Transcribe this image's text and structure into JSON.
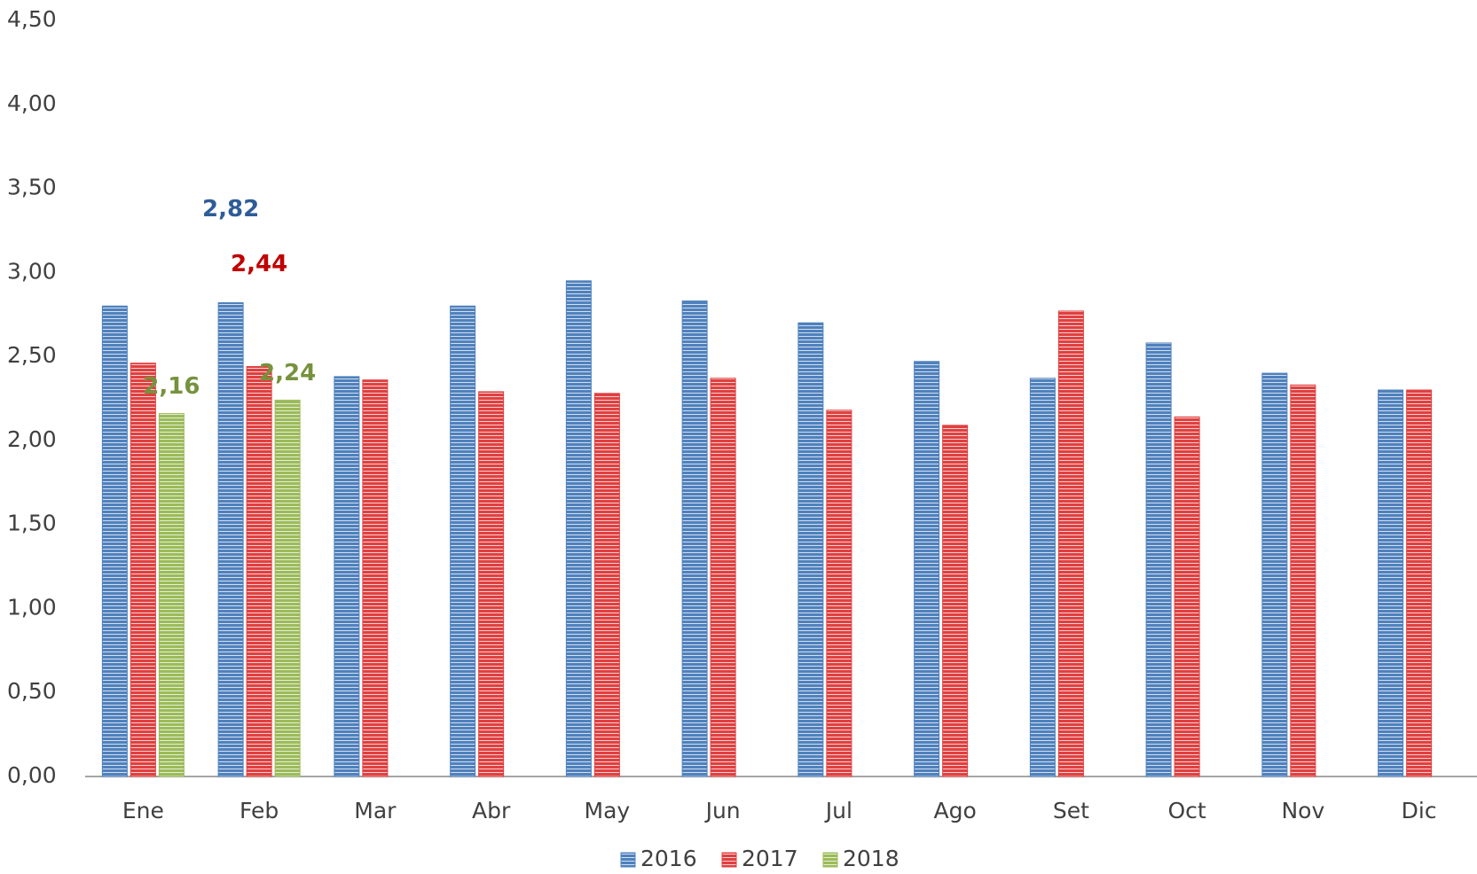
{
  "chart_data": {
    "type": "bar",
    "categories": [
      "Ene",
      "Feb",
      "Mar",
      "Abr",
      "May",
      "Jun",
      "Jul",
      "Ago",
      "Set",
      "Oct",
      "Nov",
      "Dic"
    ],
    "series": [
      {
        "name": "2016",
        "color": "#4f81bd",
        "values": [
          2.8,
          2.82,
          2.38,
          2.8,
          2.95,
          2.83,
          2.7,
          2.47,
          2.37,
          2.58,
          2.4,
          2.3
        ],
        "value_labels": [
          null,
          "2,82",
          null,
          null,
          null,
          null,
          null,
          null,
          null,
          null,
          null,
          null
        ],
        "label_color": "#2e5c97"
      },
      {
        "name": "2017",
        "color": "#e04040",
        "values": [
          2.46,
          2.44,
          2.36,
          2.29,
          2.28,
          2.37,
          2.18,
          2.09,
          2.77,
          2.14,
          2.33,
          2.3
        ],
        "value_labels": [
          null,
          "2,44",
          null,
          null,
          null,
          null,
          null,
          null,
          null,
          null,
          null,
          null
        ],
        "label_color": "#c00000"
      },
      {
        "name": "2018",
        "color": "#9bbb59",
        "values": [
          2.16,
          2.24,
          null,
          null,
          null,
          null,
          null,
          null,
          null,
          null,
          null,
          null
        ],
        "value_labels": [
          "2,16",
          "2,24",
          null,
          null,
          null,
          null,
          null,
          null,
          null,
          null,
          null,
          null
        ],
        "label_color": "#76923c"
      }
    ],
    "ylim": [
      0,
      4.5
    ],
    "yticks": [
      {
        "value": 0,
        "label": "0,00"
      },
      {
        "value": 0.5,
        "label": "0,50"
      },
      {
        "value": 1,
        "label": "1,00"
      },
      {
        "value": 1.5,
        "label": "1,50"
      },
      {
        "value": 2,
        "label": "2,00"
      },
      {
        "value": 2.5,
        "label": "2,50"
      },
      {
        "value": 3,
        "label": "3,00"
      },
      {
        "value": 3.5,
        "label": "3,50"
      },
      {
        "value": 4,
        "label": "4,00"
      },
      {
        "value": 4.5,
        "label": "4,50"
      }
    ],
    "legend": "bottom"
  }
}
